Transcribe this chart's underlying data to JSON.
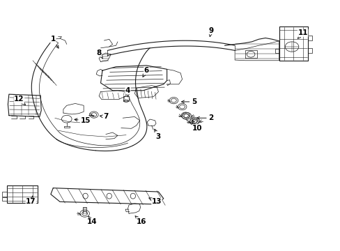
{
  "background_color": "#ffffff",
  "line_color": "#1a1a1a",
  "text_color": "#000000",
  "fig_width": 4.89,
  "fig_height": 3.6,
  "dpi": 100,
  "label_fontsize": 7.5,
  "label_positions": {
    "1": [
      0.155,
      0.845,
      0.175,
      0.8
    ],
    "2": [
      0.62,
      0.53,
      0.57,
      0.53
    ],
    "3": [
      0.465,
      0.455,
      0.45,
      0.495
    ],
    "4": [
      0.375,
      0.64,
      0.375,
      0.605
    ],
    "5": [
      0.57,
      0.595,
      0.525,
      0.595
    ],
    "6": [
      0.43,
      0.72,
      0.415,
      0.685
    ],
    "7": [
      0.31,
      0.535,
      0.285,
      0.54
    ],
    "8": [
      0.29,
      0.79,
      0.305,
      0.76
    ],
    "9": [
      0.62,
      0.88,
      0.615,
      0.845
    ],
    "10": [
      0.58,
      0.49,
      0.56,
      0.53
    ],
    "11": [
      0.89,
      0.87,
      0.87,
      0.84
    ],
    "12": [
      0.055,
      0.605,
      0.075,
      0.58
    ],
    "13": [
      0.46,
      0.195,
      0.43,
      0.215
    ],
    "14": [
      0.27,
      0.115,
      0.255,
      0.145
    ],
    "15": [
      0.25,
      0.52,
      0.21,
      0.525
    ],
    "16": [
      0.415,
      0.115,
      0.395,
      0.14
    ],
    "17": [
      0.09,
      0.195,
      0.095,
      0.22
    ]
  }
}
